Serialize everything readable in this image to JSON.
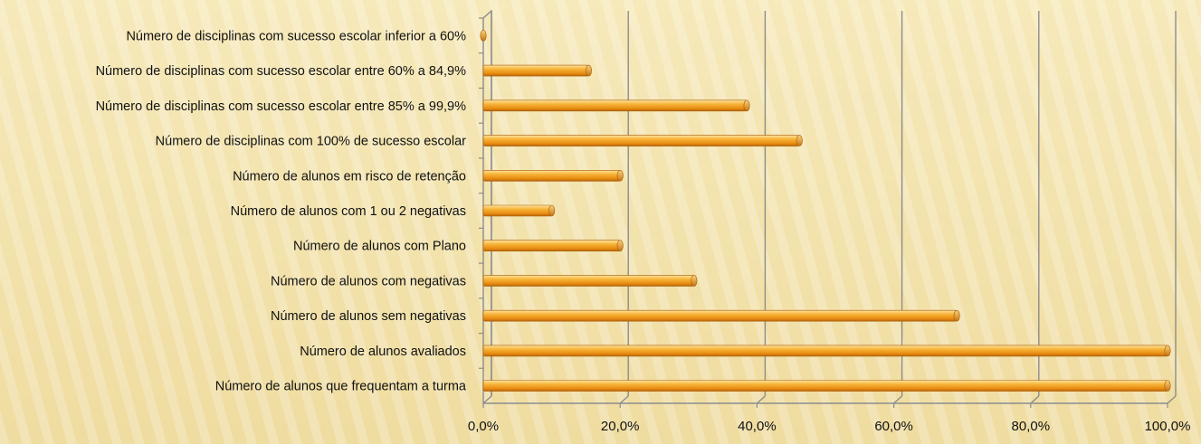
{
  "chart_data": {
    "type": "bar",
    "orientation": "horizontal",
    "categories": [
      "Número de disciplinas com sucesso escolar inferior a 60%",
      "Número de disciplinas com sucesso escolar entre 60% a 84,9%",
      "Número de disciplinas com sucesso escolar entre 85% a 99,9%",
      "Número de disciplinas com 100% de sucesso escolar",
      "Número de alunos em risco de retenção",
      "Número de alunos com 1 ou 2 negativas",
      "Número de alunos com Plano",
      "Número de alunos com negativas ",
      "Número de alunos sem negativas ",
      "Número de alunos avaliados",
      "Número de alunos que frequentam a turma"
    ],
    "values": [
      0.0,
      15.4,
      38.5,
      46.2,
      20.0,
      10.0,
      20.0,
      30.8,
      69.2,
      100.0,
      100.0
    ],
    "unit": "%",
    "xlim": [
      0,
      100
    ],
    "x_ticks": [
      "0,0%",
      "20,0%",
      "40,0%",
      "60,0%",
      "80,0%",
      "100,0%"
    ],
    "grid": true,
    "bar_color": "#f2a21f",
    "title": "",
    "xlabel": "",
    "ylabel": ""
  }
}
